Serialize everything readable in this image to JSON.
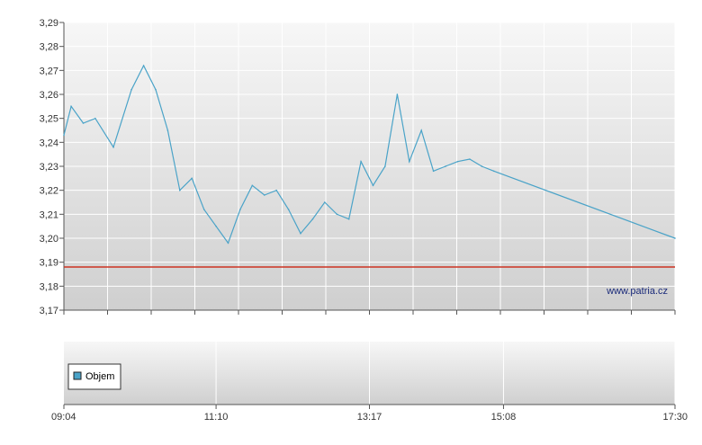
{
  "watermark": "www.patria.cz",
  "legend": {
    "label": "Objem"
  },
  "colors": {
    "price_line": "#4aa3c8",
    "reference_line": "#cc3322",
    "legend_swatch": "#4aa3c8",
    "grid": "#ffffff",
    "axis": "#555555"
  },
  "chart_data": [
    {
      "type": "line",
      "title": "",
      "xlabel": "",
      "ylabel": "",
      "y_ticks": [
        "3,17",
        "3,18",
        "3,19",
        "3,20",
        "3,21",
        "3,22",
        "3,23",
        "3,24",
        "3,25",
        "3,26",
        "3,27",
        "3,28",
        "3,29"
      ],
      "ylim": [
        3.17,
        3.29
      ],
      "xlim": [
        "09:04",
        "17:30"
      ],
      "grid": true,
      "reference_line": {
        "y": 3.188
      },
      "series": [
        {
          "x": [
            "09:04",
            "09:10",
            "09:20",
            "09:30",
            "09:45",
            "10:00",
            "10:10",
            "10:20",
            "10:30",
            "10:40",
            "10:50",
            "11:00",
            "11:10",
            "11:20",
            "11:30",
            "11:40",
            "11:50",
            "12:00",
            "12:10",
            "12:20",
            "12:30",
            "12:40",
            "12:50",
            "13:00",
            "13:10",
            "13:20",
            "13:30",
            "13:40",
            "13:50",
            "14:00",
            "14:10",
            "14:20",
            "14:30",
            "14:40",
            "14:50",
            "15:00",
            "17:30"
          ],
          "values": [
            3.243,
            3.255,
            3.248,
            3.25,
            3.238,
            3.262,
            3.272,
            3.262,
            3.245,
            3.22,
            3.225,
            3.212,
            3.205,
            3.198,
            3.212,
            3.222,
            3.218,
            3.22,
            3.212,
            3.202,
            3.208,
            3.215,
            3.21,
            3.208,
            3.232,
            3.222,
            3.23,
            3.26,
            3.232,
            3.245,
            3.228,
            3.23,
            3.232,
            3.233,
            3.23,
            3.228,
            3.2
          ]
        }
      ]
    },
    {
      "type": "bar",
      "title": "",
      "x_ticks": [
        "09:04",
        "11:10",
        "13:17",
        "15:08",
        "17:30"
      ],
      "series": [
        {
          "name": "Objem",
          "values": []
        }
      ]
    }
  ]
}
